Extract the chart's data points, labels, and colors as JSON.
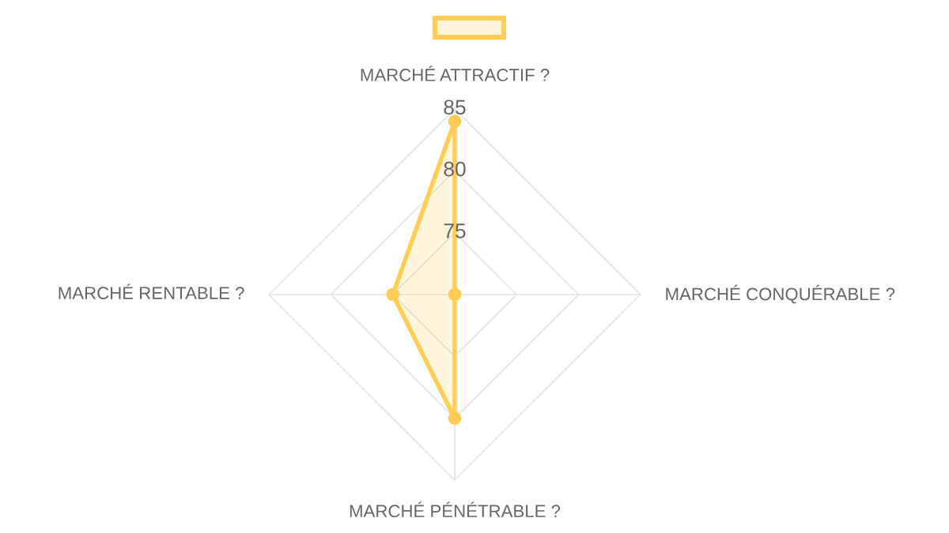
{
  "chart_data": {
    "type": "radar",
    "categories": [
      "MARCHÉ ATTRACTIF ?",
      "MARCHÉ CONQUÉRABLE ?",
      "MARCHÉ PÉNÉTRABLE ?",
      "MARCHÉ RENTABLE ?"
    ],
    "series": [
      {
        "color": "#ffcd56",
        "values": [
          84,
          70,
          80,
          75
        ]
      }
    ],
    "ylim": [
      70,
      85
    ],
    "yticks": [
      75,
      80,
      85
    ],
    "grid": true,
    "marker": "circle",
    "line_style": "solid"
  }
}
